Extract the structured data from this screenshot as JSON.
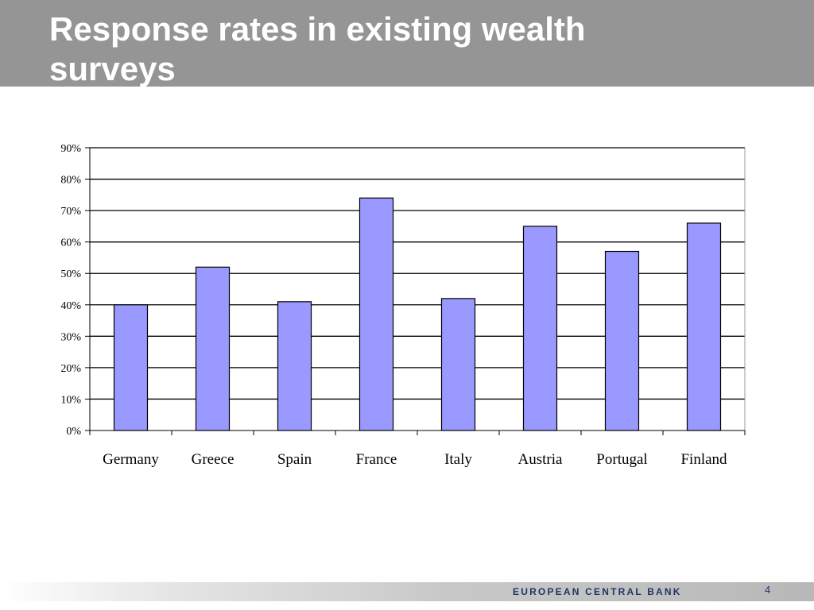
{
  "slide": {
    "title": "Response rates in existing wealth surveys",
    "footer_brand": "EUROPEAN CENTRAL BANK",
    "page_number": "4"
  },
  "colors": {
    "bar": "#9999ff",
    "header_bg": "#959595",
    "brand": "#1f3566"
  },
  "chart_data": {
    "type": "bar",
    "categories": [
      "Germany",
      "Greece",
      "Spain",
      "France",
      "Italy",
      "Austria",
      "Portugal",
      "Finland"
    ],
    "values": [
      40,
      52,
      41,
      74,
      42,
      65,
      57,
      66
    ],
    "ylim": [
      0,
      90
    ],
    "yticks": [
      "0%",
      "10%",
      "20%",
      "30%",
      "40%",
      "50%",
      "60%",
      "70%",
      "80%",
      "90%"
    ],
    "grid": true,
    "legend": "none"
  }
}
